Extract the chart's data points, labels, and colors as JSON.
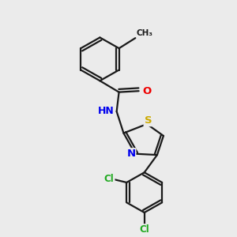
{
  "background_color": "#ebebeb",
  "bond_color": "#1a1a1a",
  "atom_colors": {
    "C": "#1a1a1a",
    "H": "#777777",
    "N": "#0000ee",
    "O": "#ee0000",
    "S": "#ccaa00",
    "Cl": "#22aa22"
  },
  "figsize": [
    3.0,
    3.0
  ],
  "dpi": 100,
  "lw": 1.6
}
